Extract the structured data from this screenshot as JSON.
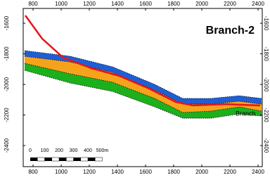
{
  "chart_data": {
    "type": "area",
    "title": "Branch-2",
    "annotation": "Branch",
    "x": [
      740,
      1065,
      1365,
      1665,
      1865,
      2065,
      2265,
      2425
    ],
    "series": [
      {
        "color": "#1f5fd6",
        "values": [
          -1779,
          -1816,
          -1885,
          -2000,
          -2092,
          -2092,
          -2074,
          -2092
        ]
      },
      {
        "color": "#f7a21b",
        "values": [
          -1816,
          -1853,
          -1922,
          -2037,
          -2129,
          -2129,
          -2110,
          -2129
        ]
      },
      {
        "color": "#1db01d",
        "values": [
          -1862,
          -1931,
          -1986,
          -2092,
          -2184,
          -2175,
          -2147,
          -2175
        ]
      },
      {
        "color": "#000000",
        "values": [
          -1908,
          -1991,
          -2046,
          -2147,
          -2221,
          -2221,
          -2193,
          -2207
        ]
      }
    ],
    "well": {
      "color": "#e8141c",
      "x": [
        745,
        865,
        1015,
        1215,
        1415,
        1615,
        1815,
        1940,
        2165,
        2415
      ],
      "values": [
        -1549,
        -1701,
        -1825,
        -1894,
        -1945,
        -2023,
        -2115,
        -2138,
        -2129,
        -2138
      ]
    },
    "xlim": [
      730,
      2430
    ],
    "ylim": [
      -2538,
      -1503
    ],
    "xticks": [
      800,
      1000,
      1200,
      1400,
      1600,
      1800,
      2000,
      2200,
      2400
    ],
    "yticks": [
      -1600,
      -1800,
      -2000,
      -2200,
      -2400
    ],
    "scale_bar": {
      "labels": [
        "0",
        "100",
        "200",
        "300",
        "400",
        "500m"
      ]
    }
  }
}
